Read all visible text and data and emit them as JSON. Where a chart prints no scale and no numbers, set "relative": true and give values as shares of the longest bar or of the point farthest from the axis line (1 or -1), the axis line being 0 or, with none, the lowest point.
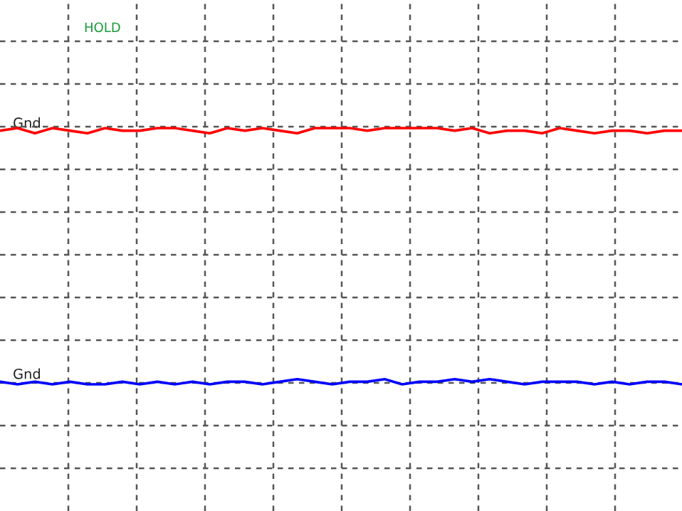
{
  "chart_data": {
    "type": "line",
    "relative": true,
    "grid": true,
    "legend": false,
    "marker": "none",
    "line_style": "solid",
    "categories": [
      null,
      null,
      null,
      null,
      null,
      null,
      null,
      null,
      null,
      null,
      null,
      null,
      null,
      null,
      null,
      null,
      null,
      null,
      null,
      null,
      null,
      null,
      null,
      null,
      null,
      null,
      null,
      null,
      null,
      null,
      null,
      null,
      null,
      null,
      null,
      null,
      null,
      null,
      null,
      null
    ],
    "series": [
      {
        "color": "#ff0000",
        "values": [
          0.99,
          1.0,
          0.98,
          1.0,
          0.99,
          0.98,
          1.0,
          0.99,
          0.99,
          1.0,
          1.0,
          0.99,
          0.98,
          1.0,
          0.99,
          1.0,
          0.99,
          0.98,
          1.0,
          1.0,
          1.0,
          0.99,
          1.0,
          1.0,
          1.0,
          1.0,
          0.99,
          1.0,
          0.98,
          0.99,
          0.99,
          0.98,
          1.0,
          0.99,
          0.98,
          0.99,
          0.99,
          0.98,
          0.99,
          0.99
        ]
      },
      {
        "color": "#0000ff",
        "values": [
          0.01,
          0.0,
          0.01,
          0.0,
          0.01,
          0.0,
          0.0,
          0.01,
          0.0,
          0.01,
          0.0,
          0.01,
          0.0,
          0.01,
          0.01,
          0.0,
          0.01,
          0.02,
          0.01,
          0.0,
          0.01,
          0.01,
          0.02,
          0.0,
          0.01,
          0.01,
          0.02,
          0.01,
          0.02,
          0.01,
          0.0,
          0.01,
          0.01,
          0.01,
          0.0,
          0.01,
          0.0,
          0.01,
          0.01,
          0.0
        ]
      }
    ],
    "annotations": [
      "HOLD",
      "Gnd",
      "Gnd"
    ]
  }
}
